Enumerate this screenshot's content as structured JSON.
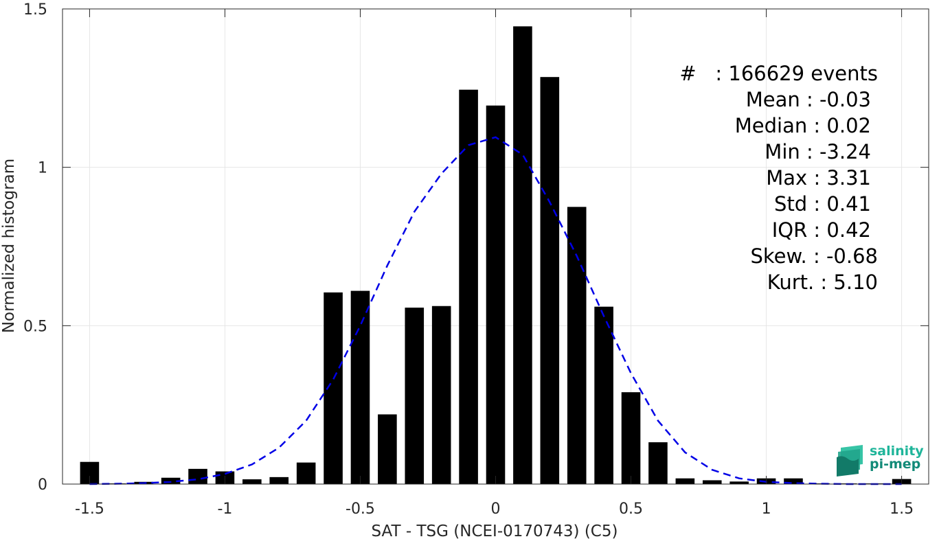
{
  "chart_data": {
    "type": "bar",
    "xlabel": "SAT - TSG (NCEI-0170743) (C5)",
    "ylabel": "Normalized histogram",
    "xlim": [
      -1.6,
      1.6
    ],
    "ylim": [
      0,
      1.5
    ],
    "grid": true,
    "x_ticks": [
      -1.5,
      -1,
      -0.5,
      0,
      0.5,
      1,
      1.5
    ],
    "x_tick_labels": [
      "-1.5",
      "-1",
      "-0.5",
      "0",
      "0.5",
      "1",
      "1.5"
    ],
    "y_ticks": [
      0,
      0.5,
      1,
      1.5
    ],
    "y_tick_labels": [
      "0",
      "0.5",
      "1",
      "1.5"
    ],
    "bin_width": 0.1,
    "bar_color": "#000000",
    "series": [
      {
        "type": "bar",
        "x": [
          -1.5,
          -1.4,
          -1.3,
          -1.2,
          -1.1,
          -1.0,
          -0.9,
          -0.8,
          -0.7,
          -0.6,
          -0.5,
          -0.4,
          -0.3,
          -0.2,
          -0.1,
          0.0,
          0.1,
          0.2,
          0.3,
          0.4,
          0.5,
          0.6,
          0.7,
          0.8,
          0.9,
          1.0,
          1.1,
          1.2,
          1.3,
          1.4,
          1.5
        ],
        "values": [
          0.07,
          0.002,
          0.007,
          0.02,
          0.048,
          0.04,
          0.015,
          0.022,
          0.068,
          0.605,
          0.61,
          0.22,
          0.557,
          0.562,
          1.245,
          1.195,
          1.445,
          1.285,
          0.875,
          0.56,
          0.29,
          0.132,
          0.018,
          0.012,
          0.008,
          0.018,
          0.018,
          0.002,
          0.002,
          0.002,
          0.016
        ]
      },
      {
        "type": "line",
        "style": "dashed",
        "color": "#0000e6",
        "x": [
          -1.5,
          -1.4,
          -1.3,
          -1.2,
          -1.1,
          -1.0,
          -0.9,
          -0.8,
          -0.7,
          -0.6,
          -0.5,
          -0.4,
          -0.3,
          -0.2,
          -0.1,
          0.0,
          0.1,
          0.2,
          0.3,
          0.4,
          0.5,
          0.6,
          0.7,
          0.8,
          0.9,
          1.0,
          1.1,
          1.2,
          1.3,
          1.4,
          1.5
        ],
        "values": [
          0.0,
          0.001,
          0.003,
          0.007,
          0.015,
          0.032,
          0.062,
          0.115,
          0.2,
          0.33,
          0.5,
          0.69,
          0.86,
          0.98,
          1.07,
          1.095,
          1.04,
          0.89,
          0.72,
          0.53,
          0.35,
          0.2,
          0.1,
          0.045,
          0.018,
          0.007,
          0.003,
          0.001,
          0.0,
          0.0,
          0.0
        ]
      }
    ]
  },
  "stats": [
    "#   : 166629 events",
    "Mean : -0.03",
    "Median : 0.02",
    "Min : -3.24",
    "Max : 3.31",
    "Std : 0.41",
    "IQR : 0.42",
    "Skew. : -0.68",
    "Kurt. : 5.10"
  ],
  "logo": {
    "line1": "salinity",
    "line2": "pi-mep",
    "color_light": "#1fb59a",
    "color_dark": "#128a78"
  }
}
